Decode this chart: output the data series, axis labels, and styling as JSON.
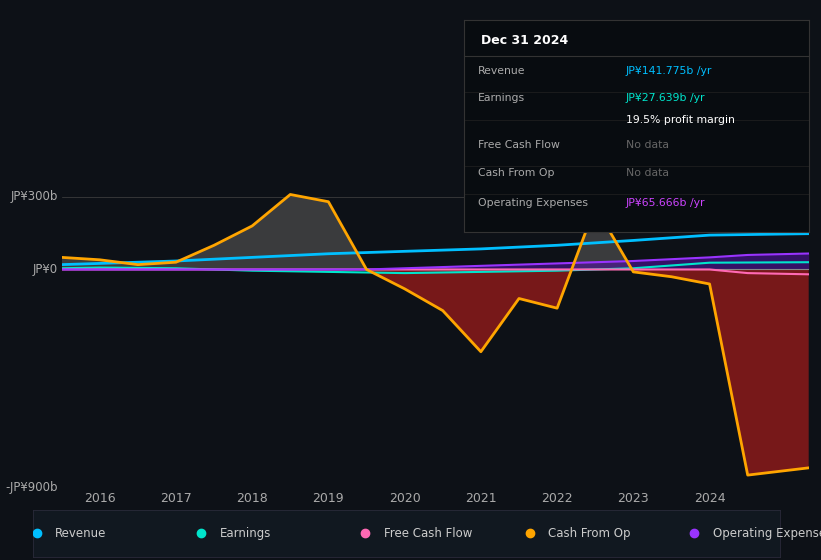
{
  "bg_color": "#0d1117",
  "plot_bg_color": "#0d1117",
  "ylabel_top": "JP¥300b",
  "ylabel_bottom": "-JP¥900b",
  "ylabel_mid": "JP¥0",
  "ylim": [
    -900,
    350
  ],
  "xlim_start": 2015.5,
  "xlim_end": 2025.3,
  "xticks": [
    2016,
    2017,
    2018,
    2019,
    2020,
    2021,
    2022,
    2023,
    2024
  ],
  "legend": [
    {
      "label": "Revenue",
      "color": "#00bfff"
    },
    {
      "label": "Earnings",
      "color": "#00e5cc"
    },
    {
      "label": "Free Cash Flow",
      "color": "#ff69b4"
    },
    {
      "label": "Cash From Op",
      "color": "#ffa500"
    },
    {
      "label": "Operating Expenses",
      "color": "#9933ff"
    }
  ],
  "info_box": {
    "date": "Dec 31 2024",
    "rows": [
      {
        "label": "Revenue",
        "value": "JP¥141.775b /yr",
        "value_color": "#00bfff"
      },
      {
        "label": "Earnings",
        "value": "JP¥27.639b /yr",
        "value_color": "#00e5cc"
      },
      {
        "label": "",
        "value": "19.5% profit margin",
        "value_color": "#ffffff"
      },
      {
        "label": "Free Cash Flow",
        "value": "No data",
        "value_color": "#666666"
      },
      {
        "label": "Cash From Op",
        "value": "No data",
        "value_color": "#666666"
      },
      {
        "label": "Operating Expenses",
        "value": "JP¥65.666b /yr",
        "value_color": "#cc44ff"
      }
    ]
  },
  "revenue_x": [
    2015.5,
    2016,
    2017,
    2018,
    2019,
    2020,
    2021,
    2022,
    2023,
    2024,
    2025.3
  ],
  "revenue_y": [
    20,
    25,
    35,
    50,
    65,
    75,
    85,
    100,
    120,
    142,
    148
  ],
  "earnings_x": [
    2015.5,
    2016,
    2017,
    2018,
    2019,
    2020,
    2021,
    2022,
    2023,
    2024,
    2025.3
  ],
  "earnings_y": [
    5,
    8,
    5,
    -5,
    -10,
    -15,
    -10,
    -5,
    5,
    28,
    30
  ],
  "cfo_x": [
    2015.5,
    2016,
    2016.5,
    2017,
    2017.5,
    2018,
    2018.5,
    2019,
    2019.5,
    2020,
    2020.5,
    2021,
    2021.5,
    2022,
    2022.5,
    2023,
    2023.5,
    2024,
    2024.5,
    2025.3
  ],
  "cfo_y": [
    50,
    40,
    20,
    30,
    100,
    180,
    310,
    280,
    0,
    -80,
    -170,
    -340,
    -120,
    -160,
    260,
    -10,
    -30,
    -60,
    -850,
    -820
  ],
  "opex_x": [
    2015.5,
    2016,
    2017,
    2018,
    2019,
    2019.5,
    2020,
    2021,
    2022,
    2023,
    2024,
    2024.5,
    2025.3
  ],
  "opex_y": [
    0,
    0,
    0,
    0,
    0,
    0,
    5,
    15,
    25,
    35,
    50,
    60,
    66
  ],
  "fcf_x": [
    2015.5,
    2019.5,
    2020,
    2021,
    2022,
    2023,
    2024,
    2024.5,
    2025.3
  ],
  "fcf_y": [
    0,
    0,
    0,
    0,
    0,
    0,
    0,
    -15,
    -20
  ]
}
